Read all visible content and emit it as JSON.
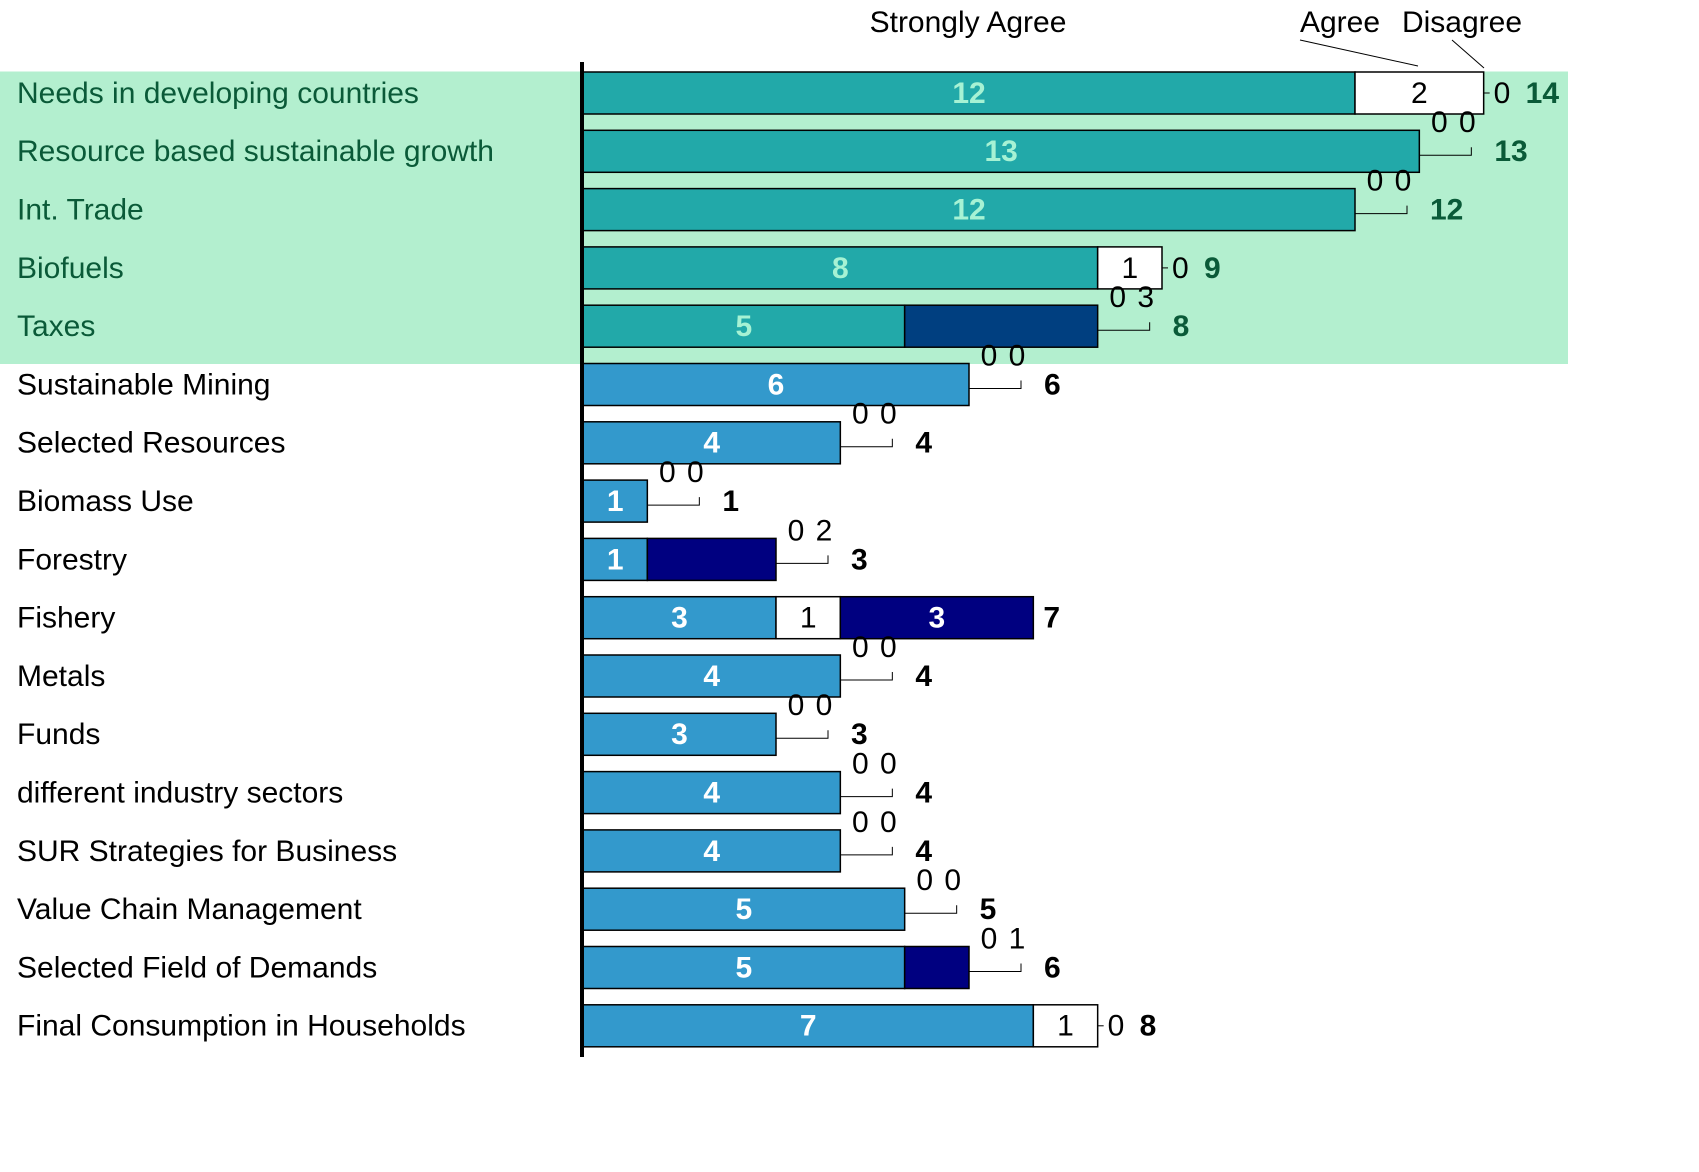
{
  "chart_data": {
    "type": "stacked-barh",
    "categories": [
      "Needs in developing countries",
      "Resource based sustainable growth",
      "Int. Trade",
      "Biofuels",
      "Taxes",
      "Sustainable Mining",
      "Selected Resources",
      "Biomass Use",
      "Forestry",
      "Fishery",
      "Metals",
      "Funds",
      "different industry sectors",
      "SUR Strategies for Business",
      "Value Chain Management",
      "Selected Field of Demands",
      "Final Consumption in Households"
    ],
    "series": [
      {
        "name": "Strongly Agree",
        "color": "#3399cc",
        "highlight_color": "#22a9a9",
        "label_color": "#ffffff",
        "highlight_label_color": "#a6f2d4",
        "values": [
          12,
          13,
          12,
          8,
          5,
          6,
          4,
          1,
          1,
          3,
          4,
          3,
          4,
          4,
          5,
          5,
          7
        ]
      },
      {
        "name": "Agree",
        "color": "#ffffff",
        "highlight_color": "#ffffff",
        "label_color": "#000000",
        "highlight_label_color": "#000000",
        "values": [
          2,
          0,
          0,
          1,
          0,
          0,
          0,
          0,
          0,
          1,
          0,
          0,
          0,
          0,
          0,
          0,
          1
        ]
      },
      {
        "name": "Disagree",
        "color": "#000080",
        "highlight_color": "#003f80",
        "label_color": "#ffffff",
        "highlight_label_color": "#ffffff",
        "values": [
          0,
          0,
          0,
          0,
          3,
          0,
          0,
          0,
          2,
          3,
          0,
          0,
          0,
          0,
          0,
          1,
          0
        ]
      }
    ],
    "totals": [
      14,
      13,
      12,
      9,
      8,
      6,
      4,
      1,
      3,
      7,
      4,
      3,
      4,
      4,
      5,
      6,
      8
    ],
    "xlim": [
      0,
      15
    ],
    "highlight": {
      "count": 5,
      "color": "#b3efcf",
      "text_color": "#0a5a38"
    }
  }
}
